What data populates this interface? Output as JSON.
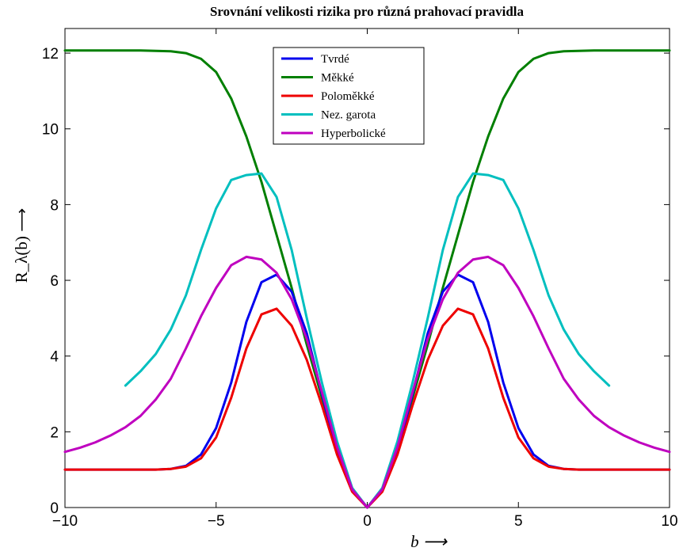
{
  "chart_data": {
    "type": "line",
    "title": "Srovnání velikosti rizika pro různá prahovací pravidla",
    "xlabel": "b  ⟶",
    "ylabel": "R_λ(b)  ⟶",
    "xlim": [
      -10,
      10
    ],
    "ylim": [
      0,
      12.65
    ],
    "xticks": [
      -10,
      -5,
      0,
      5,
      10
    ],
    "xtick_labels": [
      "−10",
      "−5",
      "0",
      "5",
      "10"
    ],
    "yticks": [
      0,
      2,
      4,
      6,
      8,
      10,
      12
    ],
    "ytick_labels": [
      "0",
      "2",
      "4",
      "6",
      "8",
      "10",
      "12"
    ],
    "grid": false,
    "legend_position": "top-center",
    "x": [
      -10,
      -9.5,
      -9,
      -8.5,
      -8,
      -7.5,
      -7,
      -6.5,
      -6,
      -5.5,
      -5,
      -4.5,
      -4,
      -3.5,
      -3,
      -2.5,
      -2,
      -1.5,
      -1,
      -0.5,
      0,
      0.5,
      1,
      1.5,
      2,
      2.5,
      3,
      3.5,
      4,
      4.5,
      5,
      5.5,
      6,
      6.5,
      7,
      7.5,
      8,
      8.5,
      9,
      9.5,
      10
    ],
    "series": [
      {
        "name": "Tvrdé",
        "color": "#0000ee",
        "values": [
          1.0,
          1.0,
          1.0,
          1.0,
          1.0,
          1.0,
          1.0,
          1.02,
          1.1,
          1.4,
          2.1,
          3.3,
          4.9,
          5.95,
          6.15,
          5.7,
          4.6,
          3.0,
          1.5,
          0.45,
          0.0,
          0.45,
          1.5,
          3.0,
          4.6,
          5.7,
          6.15,
          5.95,
          4.9,
          3.3,
          2.1,
          1.4,
          1.1,
          1.02,
          1.0,
          1.0,
          1.0,
          1.0,
          1.0,
          1.0,
          1.0
        ]
      },
      {
        "name": "Měkké",
        "color": "#007f00",
        "values": [
          12.07,
          12.07,
          12.07,
          12.07,
          12.07,
          12.07,
          12.06,
          12.05,
          12.0,
          11.85,
          11.5,
          10.8,
          9.8,
          8.6,
          7.2,
          5.8,
          4.3,
          2.9,
          1.6,
          0.5,
          0.0,
          0.5,
          1.6,
          2.9,
          4.3,
          5.8,
          7.2,
          8.6,
          9.8,
          10.8,
          11.5,
          11.85,
          12.0,
          12.05,
          12.06,
          12.07,
          12.07,
          12.07,
          12.07,
          12.07,
          12.07
        ]
      },
      {
        "name": "Poloměkké",
        "color": "#ee0000",
        "values": [
          1.0,
          1.0,
          1.0,
          1.0,
          1.0,
          1.0,
          1.0,
          1.02,
          1.08,
          1.3,
          1.85,
          2.9,
          4.2,
          5.1,
          5.25,
          4.8,
          3.9,
          2.7,
          1.4,
          0.42,
          0.0,
          0.42,
          1.4,
          2.7,
          3.9,
          4.8,
          5.25,
          5.1,
          4.2,
          2.9,
          1.85,
          1.3,
          1.08,
          1.02,
          1.0,
          1.0,
          1.0,
          1.0,
          1.0,
          1.0,
          1.0
        ]
      },
      {
        "name": "Nez. garota",
        "color": "#00bfbf",
        "values": [
          null,
          null,
          null,
          null,
          3.22,
          3.6,
          4.05,
          4.7,
          5.6,
          6.8,
          7.9,
          8.65,
          8.78,
          8.82,
          8.2,
          6.8,
          5.0,
          3.3,
          1.75,
          0.52,
          0.0,
          0.52,
          1.75,
          3.3,
          5.0,
          6.8,
          8.2,
          8.82,
          8.78,
          8.65,
          7.9,
          6.8,
          5.6,
          4.7,
          4.05,
          3.6,
          3.22,
          null,
          null,
          null,
          null
        ]
      },
      {
        "name": "Hyperbolické",
        "color": "#bf00bf",
        "values": [
          1.47,
          1.58,
          1.72,
          1.9,
          2.12,
          2.42,
          2.85,
          3.4,
          4.2,
          5.05,
          5.8,
          6.4,
          6.62,
          6.55,
          6.2,
          5.5,
          4.45,
          3.05,
          1.6,
          0.48,
          0.0,
          0.48,
          1.6,
          3.05,
          4.45,
          5.5,
          6.2,
          6.55,
          6.62,
          6.4,
          5.8,
          5.05,
          4.2,
          3.4,
          2.85,
          2.42,
          2.12,
          1.9,
          1.72,
          1.58,
          1.47
        ]
      }
    ]
  }
}
